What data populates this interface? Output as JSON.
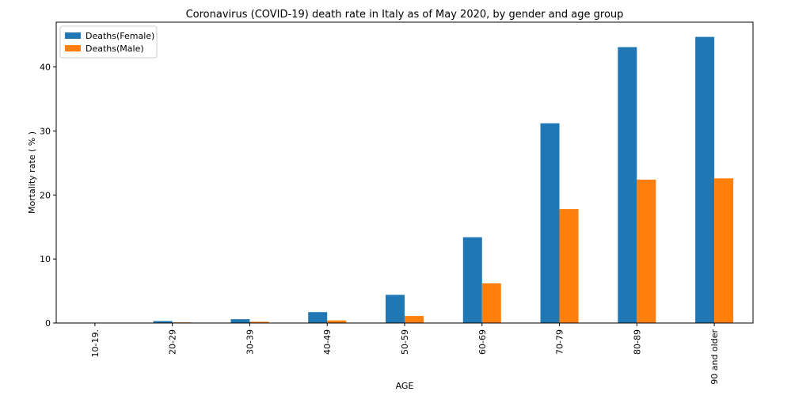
{
  "chart_data": {
    "type": "bar",
    "title": "Coronavirus (COVID-19) death rate in Italy as of May 2020, by gender and age group",
    "xlabel": "AGE",
    "ylabel": "Mortality rate ( % )",
    "categories": [
      "10-19.",
      "20-29",
      "30-39",
      "40-49",
      "50-59",
      "60-69",
      "70-79",
      "80-89",
      "90 and older"
    ],
    "series": [
      {
        "name": "Deaths(Female)",
        "color": "#1f77b4",
        "values": [
          0.0,
          0.3,
          0.6,
          1.7,
          4.4,
          13.4,
          31.2,
          43.1,
          44.7
        ]
      },
      {
        "name": "Deaths(Male)",
        "color": "#ff7f0e",
        "values": [
          0.0,
          0.1,
          0.2,
          0.4,
          1.1,
          6.2,
          17.8,
          22.4,
          22.6
        ]
      }
    ],
    "ylim": [
      0,
      47
    ],
    "yticks": [
      0,
      10,
      20,
      30,
      40
    ],
    "grid": false,
    "legend_position": "top-left"
  }
}
